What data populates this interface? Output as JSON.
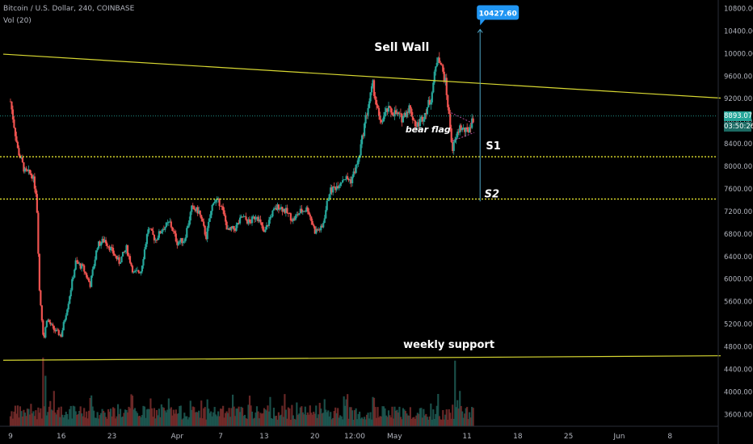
{
  "header": {
    "symbol": "Bitcoin / U.S. Dollar, 240, COINBASE",
    "volume": "Vol (20)"
  },
  "price_tags": {
    "last_price": "8893.07",
    "countdown": "03:50:26",
    "target": "10427.60"
  },
  "colors": {
    "up": "#26a69a",
    "down": "#ef5350",
    "trendline": "#d8d832",
    "support": "#e5e52e",
    "projection": "#4fa7c9",
    "last_price": "#26a69a",
    "target": "#2196f3"
  },
  "chart_data": {
    "type": "candlestick",
    "title": "Bitcoin / U.S. Dollar, 240, COINBASE",
    "y_ticks": [
      3600,
      4000,
      4400,
      4800,
      5200,
      5600,
      6000,
      6400,
      6800,
      7200,
      7600,
      8000,
      8400,
      8800,
      9200,
      9600,
      10000,
      10400,
      10800
    ],
    "y_tick_labels": [
      "3600.00",
      "4000.00",
      "4400.00",
      "4800.00",
      "5200.00",
      "5600.00",
      "6000.00",
      "6400.00",
      "6800.00",
      "7200.00",
      "7600.00",
      "8000.00",
      "8400.00",
      "8800.00",
      "9200.00",
      "9600.00",
      "10000.00",
      "10400.00",
      "10800.00"
    ],
    "ylim": [
      3390,
      10950
    ],
    "x_ticks": [
      {
        "label": "9",
        "day": 0
      },
      {
        "label": "16",
        "day": 7
      },
      {
        "label": "23",
        "day": 14
      },
      {
        "label": "Apr",
        "day": 23
      },
      {
        "label": "7",
        "day": 29
      },
      {
        "label": "13",
        "day": 35
      },
      {
        "label": "20",
        "day": 42
      },
      {
        "label": "12:00",
        "day": 47.5
      },
      {
        "label": "May",
        "day": 53
      },
      {
        "label": "11",
        "day": 63
      },
      {
        "label": "18",
        "day": 70
      },
      {
        "label": "25",
        "day": 77
      },
      {
        "label": "Jun",
        "day": 84
      },
      {
        "label": "8",
        "day": 91
      }
    ],
    "xlim_days": [
      -1,
      98
    ],
    "price_path": [
      [
        0,
        9150
      ],
      [
        1,
        8300
      ],
      [
        2,
        7900
      ],
      [
        3,
        7850
      ],
      [
        3.6,
        7500
      ],
      [
        4,
        5800
      ],
      [
        4.6,
        4900
      ],
      [
        5,
        5300
      ],
      [
        6,
        5100
      ],
      [
        7,
        5000
      ],
      [
        8,
        5600
      ],
      [
        9,
        6300
      ],
      [
        10,
        6200
      ],
      [
        11,
        5900
      ],
      [
        12,
        6600
      ],
      [
        13,
        6700
      ],
      [
        14,
        6500
      ],
      [
        15,
        6300
      ],
      [
        16,
        6550
      ],
      [
        17,
        6100
      ],
      [
        18,
        6150
      ],
      [
        19,
        6900
      ],
      [
        20,
        6700
      ],
      [
        21,
        6900
      ],
      [
        22,
        7000
      ],
      [
        23,
        6650
      ],
      [
        24,
        6700
      ],
      [
        25,
        7250
      ],
      [
        26,
        7200
      ],
      [
        27,
        6750
      ],
      [
        28,
        7400
      ],
      [
        29,
        7350
      ],
      [
        30,
        6850
      ],
      [
        31,
        6900
      ],
      [
        32,
        7100
      ],
      [
        33,
        7000
      ],
      [
        34,
        7150
      ],
      [
        35,
        6800
      ],
      [
        36,
        7150
      ],
      [
        37,
        7300
      ],
      [
        38,
        7200
      ],
      [
        39,
        7050
      ],
      [
        40,
        7200
      ],
      [
        41,
        7250
      ],
      [
        42,
        6850
      ],
      [
        43,
        6900
      ],
      [
        44,
        7550
      ],
      [
        45,
        7650
      ],
      [
        46,
        7800
      ],
      [
        47,
        7750
      ],
      [
        48,
        8100
      ],
      [
        49,
        8850
      ],
      [
        50,
        9450
      ],
      [
        51,
        8750
      ],
      [
        52,
        9000
      ],
      [
        53,
        8950
      ],
      [
        54,
        8850
      ],
      [
        55,
        9050
      ],
      [
        56,
        8700
      ],
      [
        57,
        8900
      ],
      [
        58,
        9200
      ],
      [
        59,
        10000
      ],
      [
        60,
        9500
      ],
      [
        61,
        8300
      ],
      [
        62,
        8700
      ],
      [
        63,
        8600
      ],
      [
        63.5,
        8750
      ],
      [
        64,
        8893
      ]
    ],
    "volume_scale": {
      "days_per_bar": 0.1667
    },
    "volume_spikes": [
      {
        "day": 4.5,
        "height": 1
      },
      {
        "day": 4.9,
        "height": 0.7
      },
      {
        "day": 6,
        "height": 0.45
      },
      {
        "day": 50,
        "height": 0.35
      },
      {
        "day": 59,
        "height": 0.4
      },
      {
        "day": 61.3,
        "height": 0.95
      },
      {
        "day": 62,
        "height": 0.45
      }
    ],
    "annotations": {
      "sell_wall": "Sell Wall",
      "bear_flag": "bear flag",
      "s1": "S1",
      "s2": "S2",
      "weekly_support": "weekly support"
    },
    "lines": {
      "sell_wall": {
        "from": [
          -1,
          9990
        ],
        "to": [
          98,
          9210
        ]
      },
      "weekly_support": {
        "from": [
          -1,
          4560
        ],
        "to": [
          98,
          4640
        ]
      },
      "s1": {
        "price": 8170,
        "from_day": -1,
        "to_day": 98
      },
      "s2": {
        "price": 7420,
        "from_day": -1,
        "to_day": 98
      },
      "last_price_level": {
        "price": 8893,
        "from_day": -1,
        "to_day": 98
      },
      "projection": {
        "day": 64.8,
        "from_price": 7380,
        "to_price": 10427.6
      }
    },
    "grid": false,
    "legend": "none"
  }
}
